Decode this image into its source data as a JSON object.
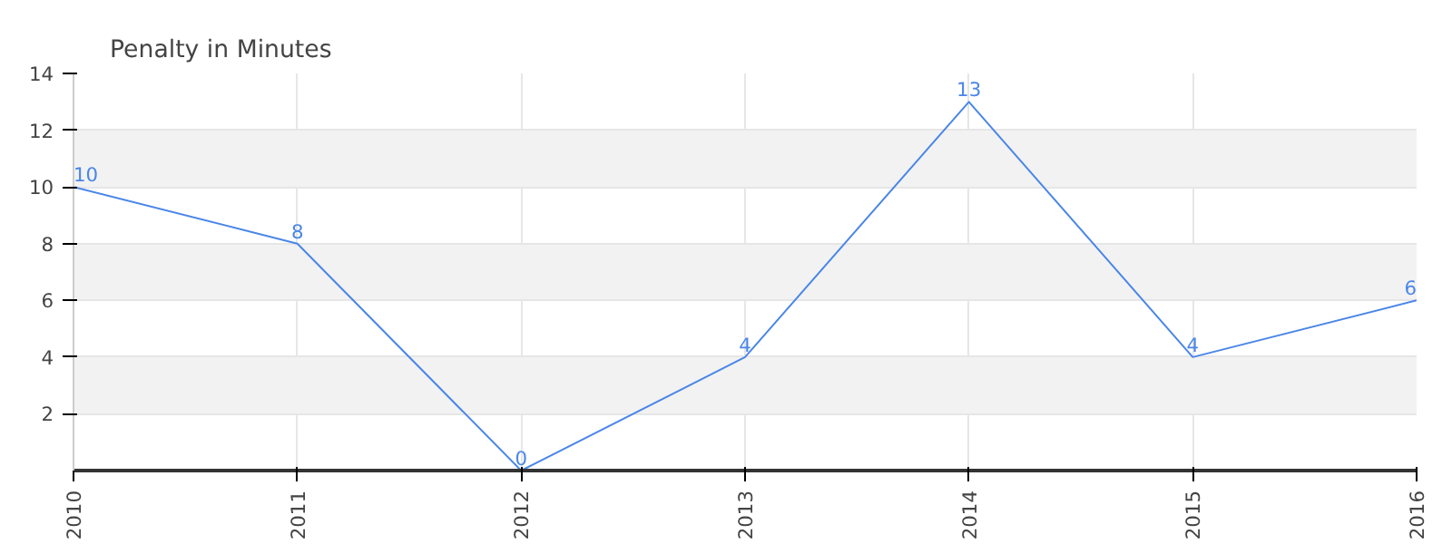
{
  "chart_data": {
    "type": "line",
    "title": "Penalty in Minutes",
    "categories": [
      "2010",
      "2011",
      "2012",
      "2013",
      "2014",
      "2015",
      "2016"
    ],
    "series": [
      {
        "color": "#4a86e8",
        "values": [
          10,
          8,
          0,
          4,
          13,
          4,
          6
        ]
      }
    ],
    "ylim": [
      0,
      14
    ],
    "yticks": [
      2,
      4,
      6,
      8,
      10,
      12,
      14
    ],
    "grid": true,
    "marker": "none",
    "line_style": "solid",
    "data_labels": true
  }
}
